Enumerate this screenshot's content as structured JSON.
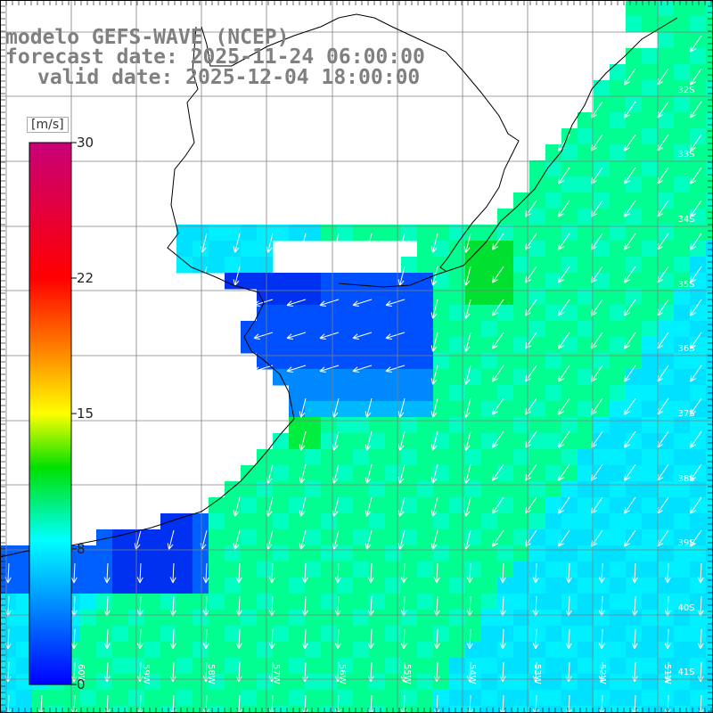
{
  "title": {
    "model": "modelo GEFS-WAVE (NCEP)",
    "forecast": "forecast date: 2025-11-24 06:00:00",
    "valid": "valid date: 2025-12-04 18:00:00"
  },
  "colorbar": {
    "unit": "[m/s]",
    "ticks": [
      "30",
      "22",
      "15",
      "8",
      "0"
    ],
    "range": [
      0,
      30
    ],
    "colors": [
      "#0000ff",
      "#00c8ff",
      "#00ffff",
      "#00e000",
      "#ffff00",
      "#ff8000",
      "#ff0000",
      "#c80078"
    ]
  },
  "map_labels": {
    "lat": [
      "32S",
      "33S",
      "34S",
      "35S",
      "36S",
      "37S",
      "38S",
      "39S",
      "40S",
      "41S"
    ],
    "lon": [
      "60W",
      "59W",
      "58W",
      "57W",
      "56W",
      "55W",
      "54W",
      "53W",
      "52W",
      "51W"
    ]
  },
  "colors": {
    "land": "#ffffff",
    "grid": "#808080",
    "coast": "#000000",
    "arrow": "#ffffff"
  }
}
